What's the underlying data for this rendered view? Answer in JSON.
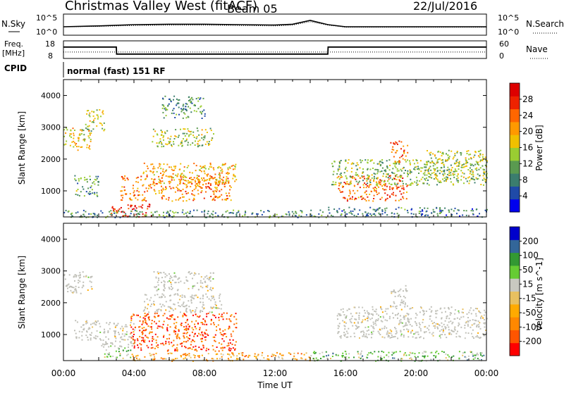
{
  "header": {
    "station": "Christmas Valley West (fitACF)",
    "beam": "Beam 05",
    "date": "22/Jul/2016"
  },
  "noise_panel": {
    "left_label": "N.Sky",
    "right_label": "N.Search",
    "left_ticks": [
      "10^5",
      "10^0"
    ],
    "right_ticks": [
      "10^5",
      "10^0"
    ]
  },
  "freq_panel": {
    "left_label_1": "Freq.",
    "left_label_2": "[MHz]",
    "right_label": "Nave",
    "left_ticks": [
      "18",
      "8"
    ],
    "right_ticks": [
      "60",
      "0"
    ]
  },
  "cpid_panel": {
    "label": "CPID",
    "text": "normal (fast) 151 RF"
  },
  "colors": {
    "power_scale": [
      "#0000ee",
      "#1f4aa8",
      "#3b7d6e",
      "#5a9a50",
      "#9acd32",
      "#f0c000",
      "#ff9900",
      "#ff6600",
      "#ee2200",
      "#dd0000"
    ],
    "velocity_scale": [
      "#ff0000",
      "#ff5500",
      "#ff8800",
      "#ffaa00",
      "#e8c060",
      "#c8c8c0",
      "#66cc33",
      "#339933",
      "#336699",
      "#0000cc"
    ],
    "ground_scatter": "#c0c0b8"
  },
  "chart_data": [
    {
      "type": "line",
      "title": "N.Sky",
      "x": [
        "00:00",
        "02:00",
        "04:00",
        "06:00",
        "08:00",
        "10:00",
        "12:00",
        "13:00",
        "14:00",
        "15:00",
        "16:00",
        "18:00",
        "20:00",
        "22:00",
        "24:00"
      ],
      "series": [
        {
          "name": "N.Sky",
          "values": [
            2.0,
            2.2,
            2.5,
            2.6,
            2.6,
            2.5,
            2.4,
            2.6,
            3.5,
            2.5,
            2.0,
            2.0,
            2.0,
            2.0,
            2.0
          ]
        },
        {
          "name": "N.Search",
          "values": [
            2.0,
            2.1,
            2.3,
            2.4,
            2.4,
            2.3,
            2.2,
            2.4,
            3.2,
            2.4,
            1.9,
            1.9,
            1.9,
            1.9,
            1.9
          ]
        }
      ],
      "ylim": [
        0,
        5
      ]
    },
    {
      "type": "line",
      "title": "Freq.",
      "x": [
        "00:00",
        "03:00",
        "03:01",
        "15:00",
        "15:01",
        "24:00"
      ],
      "series": [
        {
          "name": "Freq.",
          "values": [
            14.5,
            14.5,
            10.5,
            10.5,
            14.5,
            14.5
          ]
        },
        {
          "name": "Nave",
          "values": [
            22,
            22,
            22,
            22,
            22,
            22
          ]
        }
      ],
      "ylim": [
        8,
        18
      ]
    },
    {
      "type": "heatmap",
      "title": "Power",
      "xlabel": "",
      "ylabel": "Slant Range [km]",
      "colorbar_label": "Power [dB]",
      "colorbar_ticks": [
        "28",
        "24",
        "20",
        "16",
        "12",
        "8",
        "4"
      ],
      "x_ticks": [],
      "y_ticks": [
        "4000",
        "3000",
        "2000",
        "1000"
      ],
      "xlim": [
        0,
        24
      ],
      "ylim": [
        180,
        4500
      ],
      "regions": [
        {
          "t0": 0.0,
          "t1": 1.6,
          "r0": 2300,
          "r1": 3000,
          "level": 0.55
        },
        {
          "t0": 1.2,
          "t1": 2.3,
          "r0": 2900,
          "r1": 3600,
          "level": 0.45
        },
        {
          "t0": 0.6,
          "t1": 2.0,
          "r0": 850,
          "r1": 1500,
          "level": 0.35
        },
        {
          "t0": 3.2,
          "t1": 9.5,
          "r0": 700,
          "r1": 1500,
          "level": 0.7
        },
        {
          "t0": 4.5,
          "t1": 9.8,
          "r0": 1250,
          "r1": 1900,
          "level": 0.6
        },
        {
          "t0": 5.0,
          "t1": 8.5,
          "r0": 2400,
          "r1": 3000,
          "level": 0.45
        },
        {
          "t0": 5.5,
          "t1": 8.0,
          "r0": 3300,
          "r1": 4000,
          "level": 0.3
        },
        {
          "t0": 2.6,
          "t1": 5.0,
          "r0": 200,
          "r1": 600,
          "level": 0.9
        },
        {
          "t0": 0.0,
          "t1": 15.0,
          "r0": 180,
          "r1": 420,
          "level": 0.3
        },
        {
          "t0": 15.5,
          "t1": 19.5,
          "r0": 700,
          "r1": 1500,
          "level": 0.75
        },
        {
          "t0": 15.2,
          "t1": 24.0,
          "r0": 1200,
          "r1": 2000,
          "level": 0.4
        },
        {
          "t0": 18.5,
          "t1": 19.5,
          "r0": 1900,
          "r1": 2600,
          "level": 0.75
        },
        {
          "t0": 20.5,
          "t1": 24.0,
          "r0": 1400,
          "r1": 2300,
          "level": 0.45
        },
        {
          "t0": 15.0,
          "t1": 24.0,
          "r0": 180,
          "r1": 500,
          "level": 0.25
        }
      ]
    },
    {
      "type": "heatmap",
      "title": "Velocity",
      "xlabel": "Time UT",
      "ylabel": "Slant Range [km]",
      "colorbar_label": "Velocity [m s^-1]",
      "colorbar_ticks": [
        "200",
        "100",
        "50",
        "15",
        "-15",
        "-50",
        "-100",
        "-200"
      ],
      "x_ticks": [
        "00:00",
        "04:00",
        "08:00",
        "12:00",
        "16:00",
        "20:00",
        "00:00"
      ],
      "y_ticks": [
        "4000",
        "3000",
        "2000",
        "1000"
      ],
      "xlim": [
        0,
        24
      ],
      "ylim": [
        180,
        4500
      ],
      "regions": [
        {
          "t0": 0.0,
          "t1": 1.6,
          "r0": 2300,
          "r1": 3000,
          "level": 0.5
        },
        {
          "t0": 0.6,
          "t1": 2.0,
          "r0": 850,
          "r1": 1500,
          "level": 0.5
        },
        {
          "t0": 2.0,
          "t1": 4.0,
          "r0": 600,
          "r1": 1400,
          "level": 0.5
        },
        {
          "t0": 3.8,
          "t1": 9.8,
          "r0": 500,
          "r1": 1700,
          "level": 0.15
        },
        {
          "t0": 4.5,
          "t1": 9.0,
          "r0": 1700,
          "r1": 2300,
          "level": 0.5
        },
        {
          "t0": 5.0,
          "t1": 8.5,
          "r0": 2400,
          "r1": 3000,
          "level": 0.5
        },
        {
          "t0": 2.3,
          "t1": 3.8,
          "r0": 250,
          "r1": 600,
          "level": 0.62
        },
        {
          "t0": 3.8,
          "t1": 14.0,
          "r0": 180,
          "r1": 450,
          "level": 0.35
        },
        {
          "t0": 14.0,
          "t1": 24.0,
          "r0": 180,
          "r1": 500,
          "level": 0.65
        },
        {
          "t0": 15.5,
          "t1": 24.0,
          "r0": 900,
          "r1": 1900,
          "level": 0.5
        },
        {
          "t0": 18.5,
          "t1": 19.5,
          "r0": 1900,
          "r1": 2600,
          "level": 0.5
        }
      ]
    }
  ]
}
